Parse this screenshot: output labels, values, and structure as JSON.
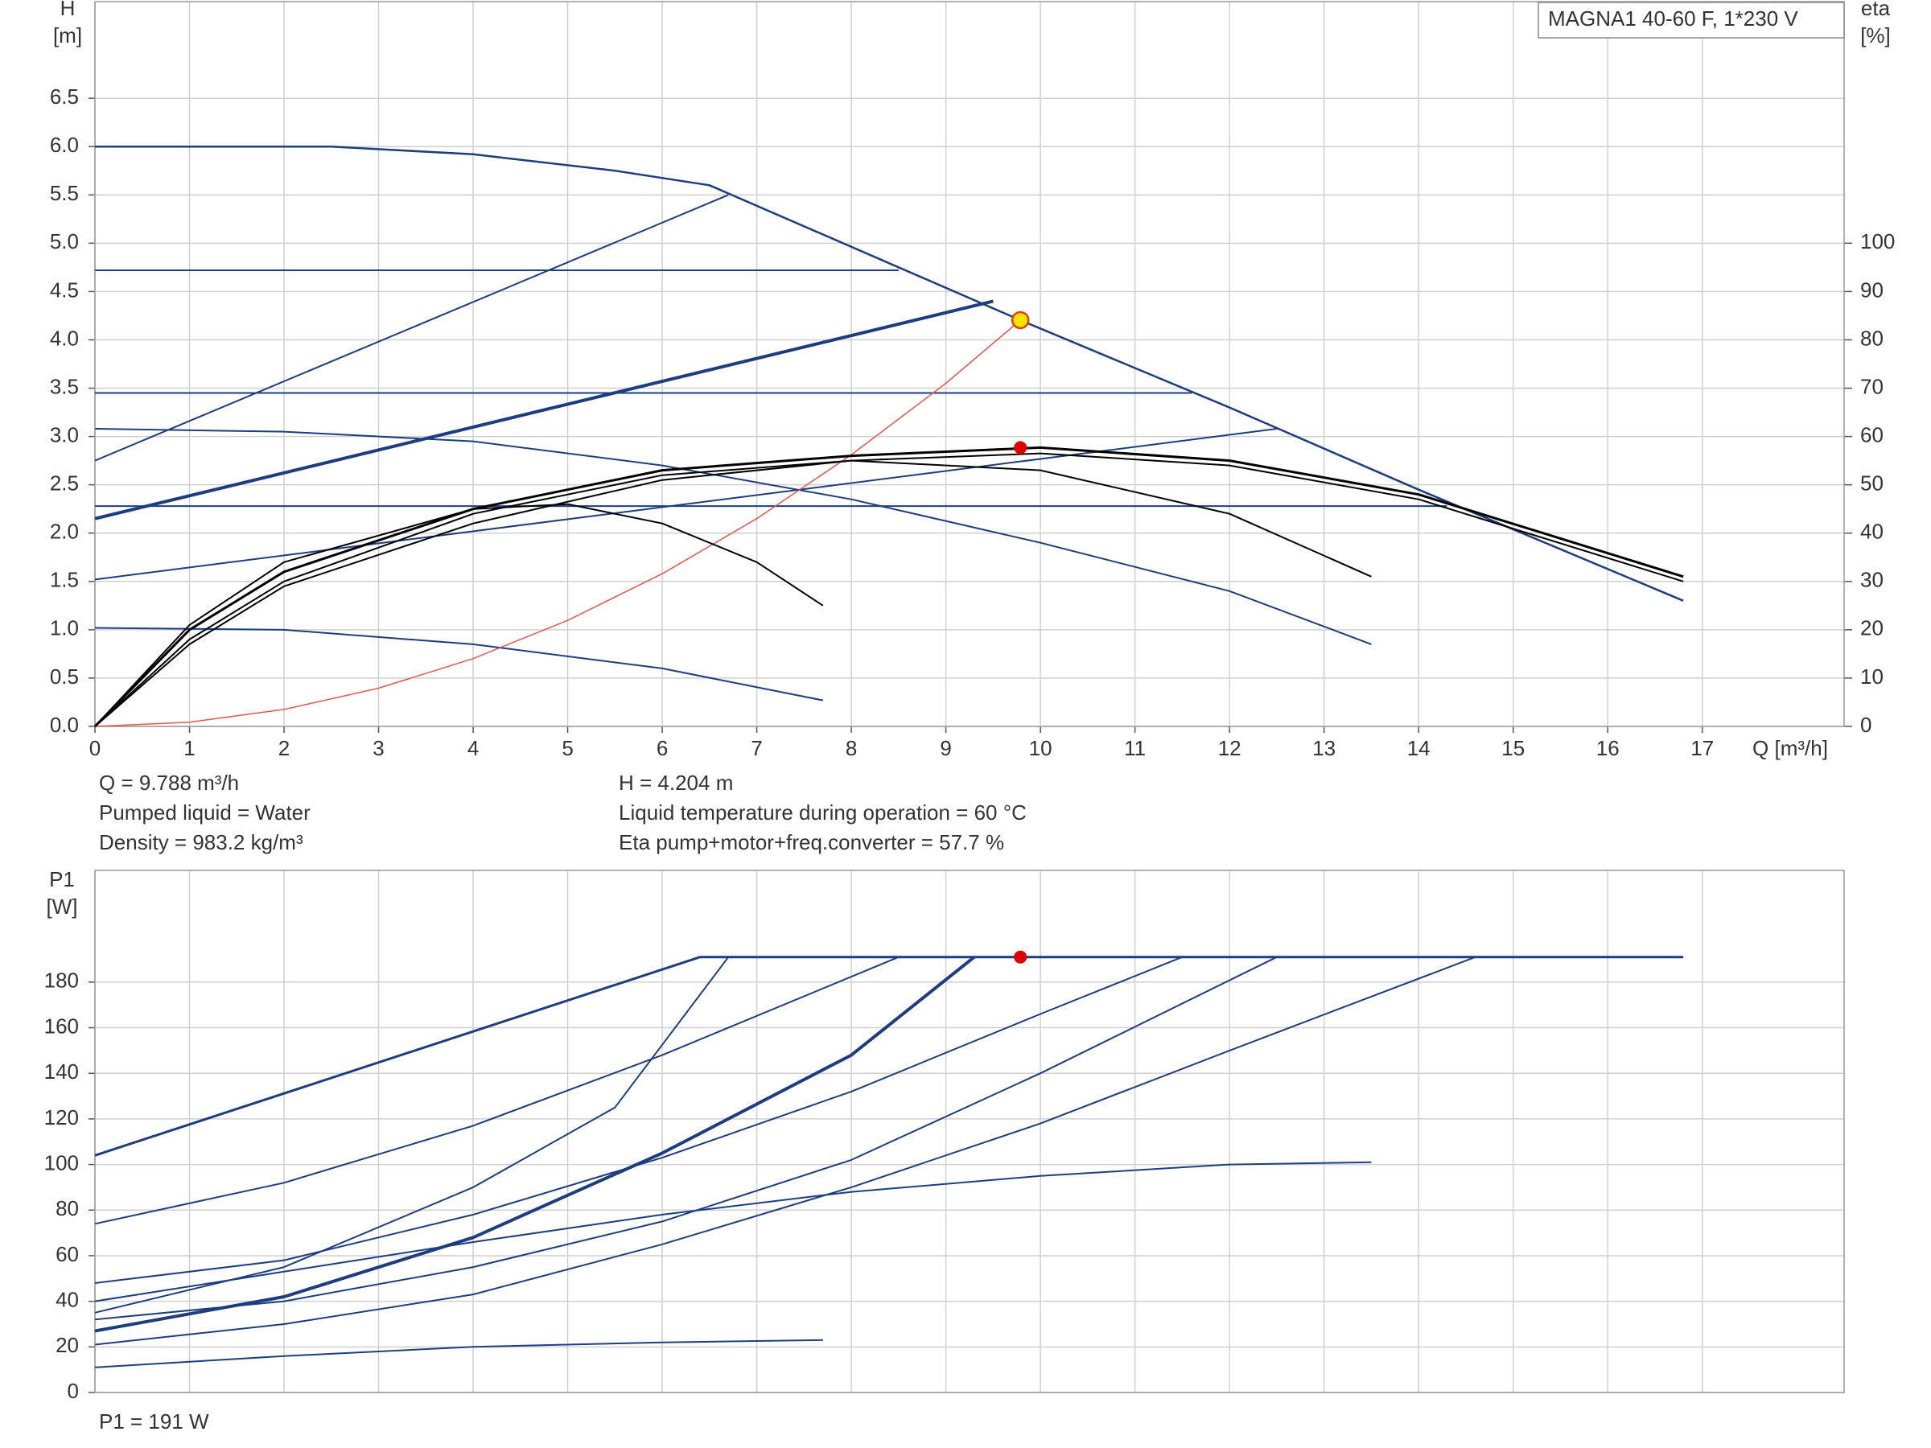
{
  "chart_data": [
    {
      "type": "line",
      "title": "MAGNA1 40-60 F, 1*230 V",
      "x_label": "Q [m³/h]",
      "y_label": [
        "H",
        "[m]"
      ],
      "y2_label": [
        "eta",
        "[%]"
      ],
      "xlim": [
        0,
        18.5
      ],
      "ylim": [
        0,
        7.5
      ],
      "y2lim": [
        0,
        150
      ],
      "xticks": [
        0,
        1,
        2,
        3,
        4,
        5,
        6,
        7,
        8,
        9,
        10,
        11,
        12,
        13,
        14,
        15,
        16,
        17
      ],
      "yticks": [
        {
          "value": 0,
          "label": "0.0"
        },
        0.5,
        {
          "value": 1,
          "label": "1.0"
        },
        1.5,
        {
          "value": 2,
          "label": "2.0"
        },
        2.5,
        {
          "value": 3,
          "label": "3.0"
        },
        3.5,
        {
          "value": 4,
          "label": "4.0"
        },
        4.5,
        {
          "value": 5,
          "label": "5.0"
        },
        5.5,
        {
          "value": 6,
          "label": "6.0"
        },
        6.5
      ],
      "y2ticks": [
        0,
        10,
        20,
        30,
        40,
        50,
        60,
        70,
        80,
        90,
        100
      ],
      "grid": true,
      "series": [
        {
          "color": "#1c3d80",
          "width": 2.5,
          "x": [
            0,
            2.5,
            4,
            5.5,
            6.5,
            9.788,
            12,
            14,
            16.8
          ],
          "values": [
            6.0,
            6.0,
            5.92,
            5.75,
            5.6,
            4.204,
            3.3,
            2.45,
            1.3
          ]
        },
        {
          "color": "#1c3d80",
          "x": [
            0,
            6.7
          ],
          "values": [
            2.75,
            5.5
          ]
        },
        {
          "color": "#1c3d80",
          "width": 4,
          "x": [
            0,
            9.5
          ],
          "values": [
            2.15,
            4.4
          ]
        },
        {
          "color": "#1c3d80",
          "x": [
            0,
            12.5
          ],
          "values": [
            1.52,
            3.08
          ]
        },
        {
          "color": "#1c3d80",
          "x": [
            0,
            8.5
          ],
          "values": [
            4.72,
            4.72
          ]
        },
        {
          "color": "#1c3d80",
          "x": [
            0,
            11.6
          ],
          "values": [
            3.45,
            3.45
          ]
        },
        {
          "color": "#1c3d80",
          "x": [
            0,
            14.3
          ],
          "values": [
            2.28,
            2.28
          ]
        },
        {
          "color": "#1c3d80",
          "x": [
            0,
            2,
            4,
            6,
            8,
            10,
            12,
            13.5
          ],
          "values": [
            3.08,
            3.05,
            2.95,
            2.7,
            2.35,
            1.9,
            1.4,
            0.85
          ]
        },
        {
          "color": "#1c3d80",
          "x": [
            0,
            2,
            4,
            6,
            7.7
          ],
          "values": [
            1.02,
            1.0,
            0.85,
            0.6,
            0.27
          ]
        },
        {
          "color": "#e8554e",
          "width": 1.5,
          "x": [
            0,
            1,
            2,
            3,
            4,
            5,
            6,
            7,
            8,
            9,
            9.788
          ],
          "values": [
            0,
            0.044,
            0.176,
            0.395,
            0.702,
            1.097,
            1.58,
            2.15,
            2.81,
            3.55,
            4.204
          ]
        },
        {
          "color": "#000000",
          "axis": "y2",
          "width": 3,
          "x": [
            0,
            1,
            2,
            4,
            6,
            8,
            10,
            12,
            14,
            16.8
          ],
          "values": [
            0,
            20,
            32,
            45,
            53,
            56,
            57.7,
            55,
            48,
            31
          ]
        },
        {
          "color": "#000000",
          "axis": "y2",
          "x": [
            0,
            1,
            2,
            4,
            6,
            8,
            10,
            12,
            14,
            16.8
          ],
          "values": [
            0,
            17,
            29,
            42,
            51,
            55,
            56.5,
            54,
            47,
            30
          ]
        },
        {
          "color": "#000000",
          "axis": "y2",
          "x": [
            0,
            1,
            2,
            4,
            6,
            8,
            10,
            12,
            13.5
          ],
          "values": [
            0,
            18,
            30,
            44,
            52,
            55,
            53,
            44,
            31
          ]
        },
        {
          "color": "#000000",
          "axis": "y2",
          "x": [
            0,
            1,
            2,
            4,
            5,
            6,
            7,
            7.7
          ],
          "values": [
            0,
            21,
            34,
            45,
            46,
            42,
            34,
            25
          ]
        }
      ],
      "operating_point": {
        "x": 9.788,
        "y": 4.204,
        "eta": 57.7
      },
      "annotations": [
        "Q = 9.788 m³/h",
        "Pumped liquid = Water",
        "Density = 983.2 kg/m³",
        "H = 4.204 m",
        "Liquid temperature during operation = 60 °C",
        "Eta pump+motor+freq.converter = 57.7 %"
      ]
    },
    {
      "type": "line",
      "y_label": [
        "P1",
        "[W]"
      ],
      "xlim": [
        0,
        18.5
      ],
      "ylim": [
        0,
        229
      ],
      "xticks": [
        0,
        1,
        2,
        3,
        4,
        5,
        6,
        7,
        8,
        9,
        10,
        11,
        12,
        13,
        14,
        15,
        16,
        17
      ],
      "xtick_labels": false,
      "yticks": [
        0,
        20,
        40,
        60,
        80,
        100,
        120,
        140,
        160,
        180
      ],
      "grid": true,
      "series": [
        {
          "color": "#1c3d80",
          "width": 3,
          "x": [
            0,
            6.4,
            16.8
          ],
          "values": [
            104,
            191,
            191
          ]
        },
        {
          "color": "#1c3d80",
          "x": [
            0,
            2,
            4,
            5.5,
            6.7
          ],
          "values": [
            35,
            55,
            90,
            125,
            191
          ]
        },
        {
          "color": "#1c3d80",
          "x": [
            0,
            2,
            4,
            6,
            8.5
          ],
          "values": [
            74,
            92,
            117,
            148,
            191
          ]
        },
        {
          "color": "#1c3d80",
          "width": 4,
          "x": [
            0,
            2,
            4,
            6,
            8,
            9.3
          ],
          "values": [
            27,
            42,
            68,
            105,
            148,
            191
          ]
        },
        {
          "color": "#1c3d80",
          "x": [
            0,
            2,
            4,
            6,
            8,
            10,
            11.5
          ],
          "values": [
            48,
            58,
            78,
            103,
            132,
            166,
            191
          ]
        },
        {
          "color": "#1c3d80",
          "x": [
            0,
            2,
            4,
            6,
            8,
            10,
            12.5
          ],
          "values": [
            32,
            40,
            55,
            75,
            102,
            140,
            191
          ]
        },
        {
          "color": "#1c3d80",
          "x": [
            0,
            2,
            4,
            6,
            8,
            10,
            12,
            14.6
          ],
          "values": [
            21,
            30,
            43,
            65,
            90,
            118,
            150,
            191
          ]
        },
        {
          "color": "#1c3d80",
          "x": [
            0,
            2,
            4,
            6,
            8,
            10,
            12,
            13.5
          ],
          "values": [
            40,
            53,
            66,
            78,
            88,
            95,
            100,
            101
          ]
        },
        {
          "color": "#1c3d80",
          "x": [
            0,
            2,
            4,
            6,
            7.7
          ],
          "values": [
            11,
            16,
            20,
            22,
            23
          ]
        }
      ],
      "operating_point": {
        "x": 9.788,
        "y": 191
      },
      "annotations": [
        "P1 = 191 W"
      ]
    }
  ]
}
